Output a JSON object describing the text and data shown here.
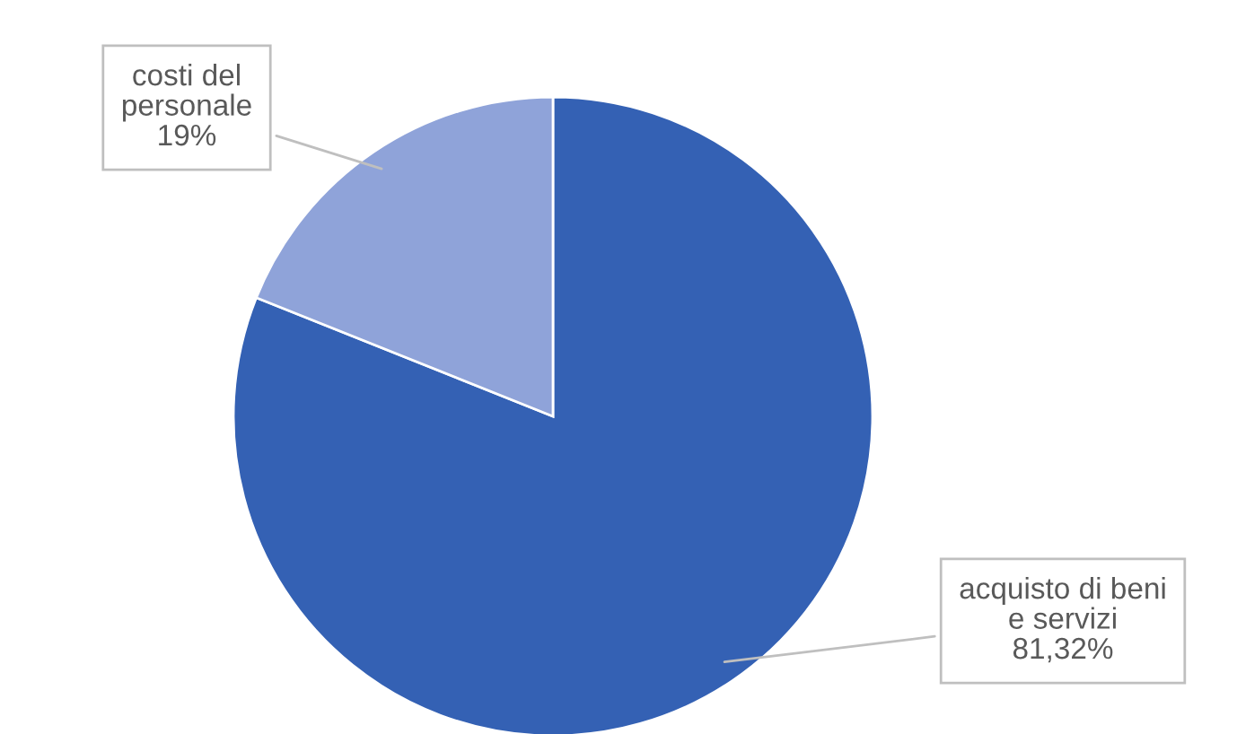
{
  "chart_data": {
    "type": "pie",
    "categories": [
      "acquisto di beni e servizi",
      "costi del personale"
    ],
    "values": [
      81.32,
      19
    ],
    "value_labels": [
      "81,32%",
      "19%"
    ],
    "colors": [
      "#3461b4",
      "#8fa3d9"
    ],
    "legend": false
  }
}
